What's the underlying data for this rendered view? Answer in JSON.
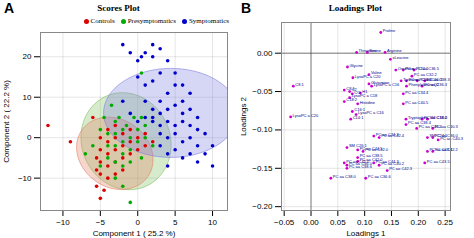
{
  "chart_data": [
    {
      "type": "scatter",
      "title": "Scores Plot",
      "panel_label": "A",
      "xlabel": "Component 1 ( 25.2 %)",
      "ylabel": "Component 2 ( 22.2 %)",
      "xlim": [
        -13,
        12
      ],
      "ylim": [
        -18,
        26
      ],
      "xticks": [
        -10,
        -5,
        0,
        5,
        10
      ],
      "yticks": [
        -10,
        0,
        10,
        20
      ],
      "grid": true,
      "legend": "top-right",
      "ellipses": [
        {
          "cx": -1.5,
          "cy": -1,
          "w": 12,
          "h": 24,
          "angle": 3,
          "color": "#80c060"
        },
        {
          "cx": -3.0,
          "cy": -4,
          "w": 10,
          "h": 18,
          "angle": 8,
          "color": "#e08060"
        },
        {
          "cx": 4.5,
          "cy": 6,
          "w": 18,
          "h": 22,
          "angle": 0,
          "color": "#8080e0"
        }
      ],
      "series": [
        {
          "name": "Controls",
          "color": "#dd0000",
          "values": [
            [
              -12,
              3
            ],
            [
              -9,
              -1
            ],
            [
              -6,
              5
            ],
            [
              -5.5,
              -5
            ],
            [
              -5.5,
              -8
            ],
            [
              -5.5,
              -12
            ],
            [
              -5,
              0
            ],
            [
              -5,
              -3
            ],
            [
              -5,
              -6
            ],
            [
              -5,
              -9
            ],
            [
              -4,
              2
            ],
            [
              -4,
              -1
            ],
            [
              -4,
              -4
            ],
            [
              -4,
              -7
            ],
            [
              -4,
              -10
            ],
            [
              -3,
              3
            ],
            [
              -3,
              0
            ],
            [
              -3,
              -3
            ],
            [
              -3,
              -6
            ],
            [
              -3,
              -9
            ],
            [
              -2,
              1
            ],
            [
              -2,
              -2
            ],
            [
              -2,
              -5
            ],
            [
              -2,
              -8
            ],
            [
              -1,
              2
            ],
            [
              -1,
              -1
            ],
            [
              -1,
              -4
            ],
            [
              0,
              0
            ],
            [
              0,
              -3
            ],
            [
              1,
              1
            ],
            [
              1,
              -2
            ],
            [
              2,
              -1
            ],
            [
              -4.5,
              -13
            ],
            [
              -5,
              -15
            ]
          ]
        },
        {
          "name": "Presymptomatics",
          "color": "#00aa00",
          "values": [
            [
              -7,
              -4
            ],
            [
              -6,
              -2
            ],
            [
              -5,
              2
            ],
            [
              -5,
              -7
            ],
            [
              -4.5,
              5
            ],
            [
              -4,
              1
            ],
            [
              -4,
              -2
            ],
            [
              -4,
              -5
            ],
            [
              -3.5,
              8
            ],
            [
              -3,
              4
            ],
            [
              -3,
              1
            ],
            [
              -3,
              -2
            ],
            [
              -3,
              -6
            ],
            [
              -3,
              -10
            ],
            [
              -2.5,
              5
            ],
            [
              -2,
              2
            ],
            [
              -2,
              -1
            ],
            [
              -2,
              -4
            ],
            [
              -2,
              -7
            ],
            [
              -2,
              -12
            ],
            [
              -1.5,
              3
            ],
            [
              -1,
              0
            ],
            [
              -1,
              -3
            ],
            [
              -1,
              -6
            ],
            [
              -0.5,
              5
            ],
            [
              0,
              2
            ],
            [
              0,
              -1
            ],
            [
              0.5,
              5
            ],
            [
              0.5,
              -5
            ],
            [
              1,
              3
            ],
            [
              1,
              0
            ],
            [
              2,
              -2
            ],
            [
              -1,
              -16
            ],
            [
              0.5,
              16
            ]
          ]
        },
        {
          "name": "Symptomatics",
          "color": "#0000cc",
          "values": [
            [
              -2,
              23
            ],
            [
              -1,
              21
            ],
            [
              0,
              19
            ],
            [
              1,
              21
            ],
            [
              2,
              23
            ],
            [
              0.5,
              20
            ],
            [
              2,
              20
            ],
            [
              3,
              22
            ],
            [
              0,
              15
            ],
            [
              1,
              13
            ],
            [
              2,
              14
            ],
            [
              3,
              16
            ],
            [
              4,
              19
            ],
            [
              5,
              16
            ],
            [
              6,
              13
            ],
            [
              1,
              9
            ],
            [
              2,
              7
            ],
            [
              3,
              9
            ],
            [
              4,
              11
            ],
            [
              5,
              13
            ],
            [
              6,
              9
            ],
            [
              7,
              11
            ],
            [
              2,
              5
            ],
            [
              3,
              6
            ],
            [
              4,
              7
            ],
            [
              5,
              8
            ],
            [
              6,
              6
            ],
            [
              7,
              7
            ],
            [
              8,
              5
            ],
            [
              3,
              3
            ],
            [
              4,
              4
            ],
            [
              5,
              3
            ],
            [
              6,
              4
            ],
            [
              7,
              3
            ],
            [
              8,
              2
            ],
            [
              9,
              1
            ],
            [
              3,
              1
            ],
            [
              4,
              0
            ],
            [
              5,
              1
            ],
            [
              6,
              -1
            ],
            [
              7,
              0
            ],
            [
              8,
              -2
            ],
            [
              9,
              -4
            ],
            [
              4,
              -4
            ],
            [
              5,
              -3
            ],
            [
              6,
              -5
            ],
            [
              7,
              -4
            ],
            [
              8,
              -6
            ],
            [
              10,
              -2
            ],
            [
              10,
              -7
            ],
            [
              -1,
              6
            ],
            [
              0,
              4
            ],
            [
              1,
              5
            ],
            [
              2,
              4
            ],
            [
              3,
              -2
            ],
            [
              4,
              -7
            ],
            [
              -2,
              9
            ]
          ]
        }
      ]
    },
    {
      "type": "scatter",
      "title": "Loadings Plot",
      "panel_label": "B",
      "xlabel": "Loadings 1",
      "ylabel": "Loadings 2",
      "xlim": [
        -0.055,
        0.26
      ],
      "ylim": [
        -0.205,
        0.04
      ],
      "xticks": [
        -0.05,
        0,
        0.05,
        0.1,
        0.15,
        0.2,
        0.25
      ],
      "yticks": [
        -0.2,
        -0.15,
        -0.1,
        -0.05,
        0
      ],
      "grid": true,
      "reference_lines": {
        "x": [
          0
        ],
        "y": [
          0
        ]
      },
      "series": [
        {
          "color": "#cc00cc",
          "point_label_color": "#000088",
          "values": [
            [
              0.13,
              0.027
            ],
            [
              0.085,
              0.001
            ],
            [
              0.105,
              0.001
            ],
            [
              0.138,
              0.001
            ],
            [
              0.148,
              -0.008
            ],
            [
              0.068,
              -0.018
            ],
            [
              0.078,
              -0.032
            ],
            [
              0.108,
              -0.028
            ],
            [
              0.158,
              -0.022
            ],
            [
              0.172,
              -0.022
            ],
            [
              0.192,
              -0.022
            ],
            [
              0.188,
              -0.03
            ],
            [
              0.168,
              -0.036
            ],
            [
              0.178,
              -0.036
            ],
            [
              0.198,
              -0.036
            ],
            [
              0.212,
              -0.036
            ],
            [
              0.108,
              -0.04
            ],
            [
              0.113,
              -0.043
            ],
            [
              0.178,
              -0.043
            ],
            [
              0.207,
              -0.043
            ],
            [
              -0.033,
              -0.043
            ],
            [
              0.062,
              -0.048
            ],
            [
              0.072,
              -0.05
            ],
            [
              0.077,
              -0.053
            ],
            [
              0.092,
              -0.052
            ],
            [
              0.172,
              -0.053
            ],
            [
              0.072,
              -0.058
            ],
            [
              0.062,
              -0.063
            ],
            [
              0.087,
              -0.066
            ],
            [
              0.172,
              -0.066
            ],
            [
              0.077,
              -0.076
            ],
            [
              0.084,
              -0.08
            ],
            [
              -0.038,
              -0.083
            ],
            [
              0.074,
              -0.086
            ],
            [
              0.177,
              -0.086
            ],
            [
              0.207,
              -0.086
            ],
            [
              0.217,
              -0.086
            ],
            [
              0.177,
              -0.093
            ],
            [
              0.197,
              -0.098
            ],
            [
              0.227,
              -0.098
            ],
            [
              0.117,
              -0.108
            ],
            [
              0.127,
              -0.11
            ],
            [
              0.217,
              -0.11
            ],
            [
              0.227,
              -0.11
            ],
            [
              0.237,
              -0.113
            ],
            [
              0.067,
              -0.123
            ],
            [
              0.087,
              -0.126
            ],
            [
              0.097,
              -0.128
            ],
            [
              0.217,
              -0.128
            ],
            [
              0.227,
              -0.128
            ],
            [
              0.087,
              -0.136
            ],
            [
              0.087,
              -0.141
            ],
            [
              0.062,
              -0.143
            ],
            [
              0.067,
              -0.146
            ],
            [
              0.067,
              -0.15
            ],
            [
              0.117,
              -0.143
            ],
            [
              0.127,
              -0.146
            ],
            [
              0.212,
              -0.143
            ],
            [
              0.142,
              -0.153
            ],
            [
              0.037,
              -0.163
            ],
            [
              0.102,
              -0.163
            ]
          ],
          "point_labels": [
            "Proline",
            "Threonine",
            "Serine",
            "Arginine",
            "xLeucine",
            "Glycine",
            "LysoPC a C20",
            "Valine",
            "Ornithine",
            "PC aa C32.1",
            "PC aa C36.5",
            "PC aa C32.2",
            "Tyrosine",
            "PC aa C36.3",
            "PC aa C36.3",
            "PC aa C38.3",
            "Glutamine",
            "LysoPC a C16",
            "PhenylalanineQ2",
            "PC aa C36.3",
            "C8.1",
            "C8.1",
            "C2",
            "CO",
            "H1",
            "PC aa C34.4",
            "LysoPC a C18",
            "C18:2",
            "Histidine",
            "PC aa C40.5",
            "C16:1",
            "LysoPC a C16",
            "LysoPC a C20",
            "C14:1",
            "Tryptophen",
            "PC aa C38.2",
            "SM C16:0",
            "PC aa C38.4",
            "PC aa C44.4",
            "PC aa C40.3",
            "PC aa C34.3",
            "PC aa C42.4",
            "SM C24:1",
            "PC aa C36.0",
            "PC aa C40.3",
            "SM C26:1",
            "PC aa C44.5",
            "PC aa C42.0",
            "PC aa C43.5",
            "PC aa C42.2",
            "PC aa C38.5",
            "PC aa C42.0",
            "PC aa C42.0",
            "PC aa C36.0",
            "PC aa C38.6",
            "PC aa C44.3",
            "PC aa C40.2",
            "PC aa C43.5",
            "PC aa C42.3",
            "PC aa C38.0",
            "PC aa C36.6"
          ]
        }
      ]
    }
  ]
}
